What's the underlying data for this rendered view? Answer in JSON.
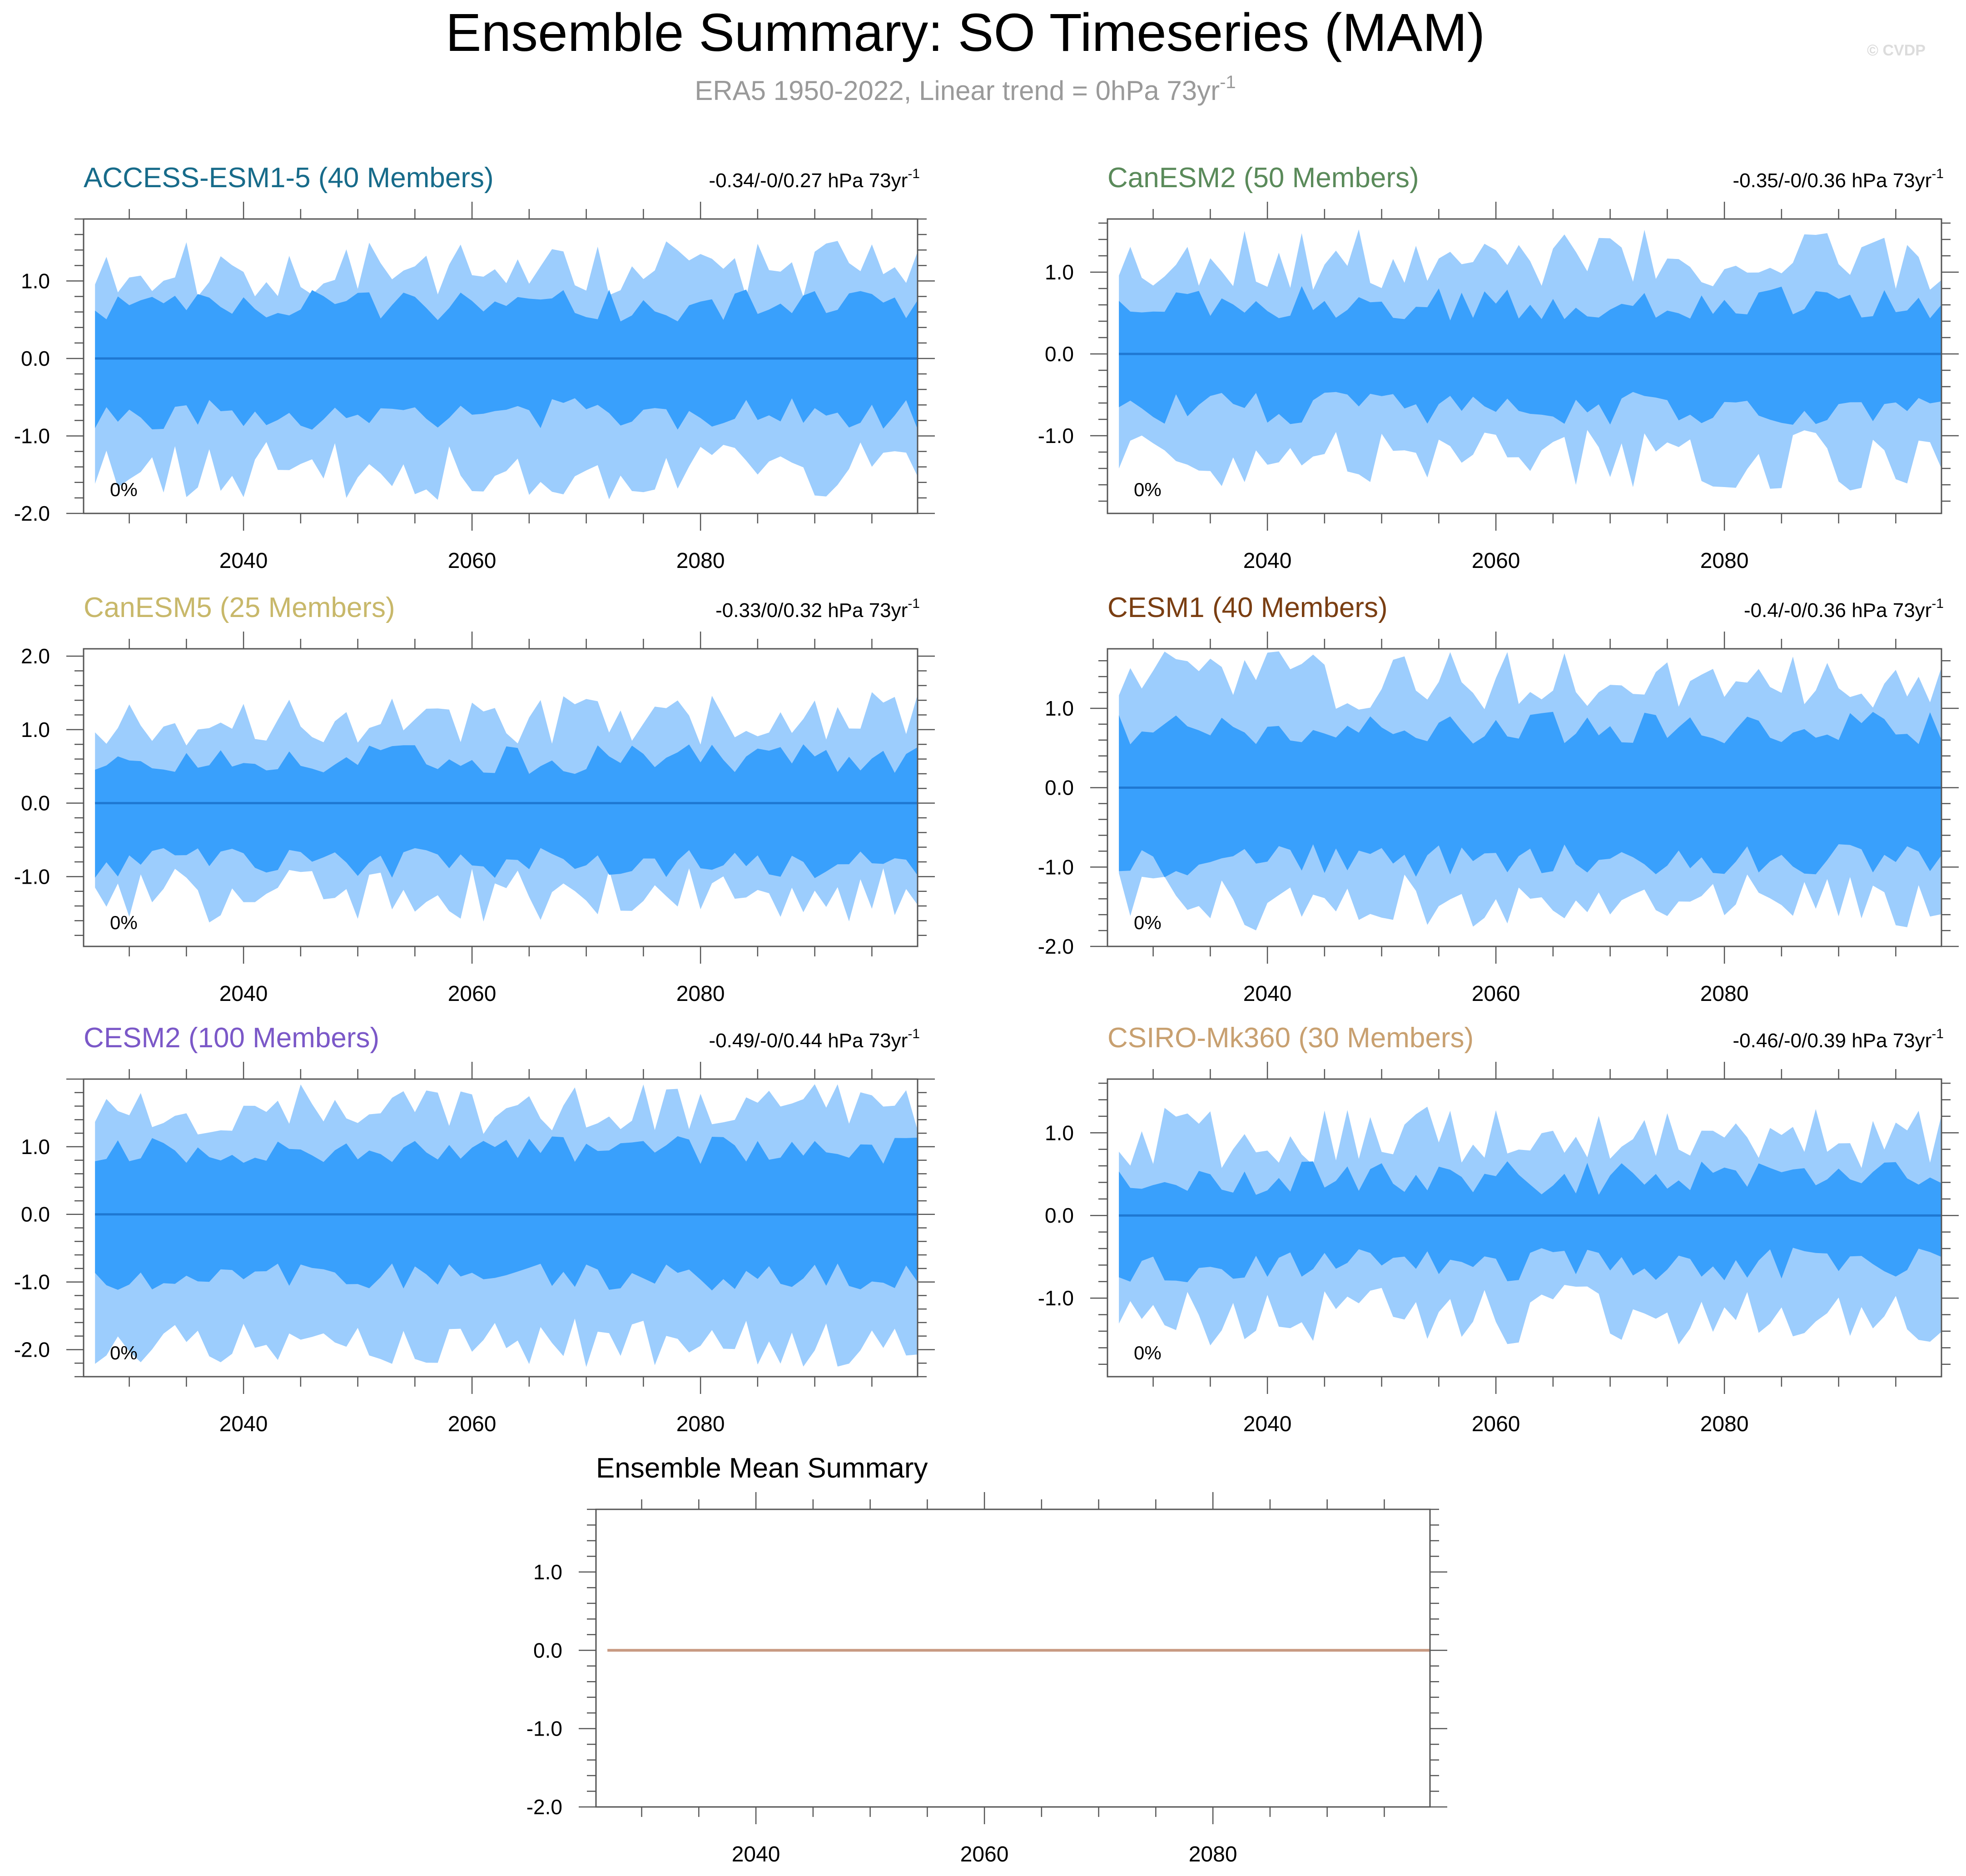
{
  "header": {
    "title": "Ensemble Summary: SO Timeseries (MAM)",
    "subtitle_text": "ERA5 1950-2022, Linear trend = 0hPa 73yr",
    "subtitle_sup": "-1",
    "watermark": "© CVDP"
  },
  "colors": {
    "outer_band": "#9ccdfd",
    "inner_band": "#39a0fc",
    "mean_line": "#1f78d2",
    "summary_line": "#c89a82",
    "axis": "#555555"
  },
  "chart_data": [
    {
      "type": "area",
      "title": "ACCESS-ESM1-5 (40 Members)",
      "title_color": "#176b8a",
      "trend_text": "-0.34/-0/0.27 hPa 73yr",
      "trend_sup": "-1",
      "percent_label": "0%",
      "xlim": [
        2026,
        2099
      ],
      "ylim": [
        -2.0,
        1.8
      ],
      "yticks": [
        -2.0,
        -1.0,
        0.0,
        1.0
      ],
      "ytick_labels": [
        "-2.0",
        "-1.0",
        "0.0",
        "1.0"
      ],
      "xticks": [
        2040,
        2060,
        2080
      ],
      "xtick_labels": [
        "2040",
        "2060",
        "2080"
      ],
      "grid": false,
      "seed": 11,
      "outer_upper_mean": 1.15,
      "outer_lower_mean": -1.45,
      "inner_upper_mean": 0.68,
      "inner_lower_mean": -0.72,
      "ensemble_mean": 0.0
    },
    {
      "type": "area",
      "title": "CanESM2 (50 Members)",
      "title_color": "#5a8a5a",
      "trend_text": "-0.35/-0/0.36 hPa 73yr",
      "trend_sup": "-1",
      "percent_label": "0%",
      "xlim": [
        2026,
        2099
      ],
      "ylim": [
        -1.95,
        1.65
      ],
      "yticks": [
        -1.0,
        0.0,
        1.0
      ],
      "ytick_labels": [
        "-1.0",
        "0.0",
        "1.0"
      ],
      "xticks": [
        2040,
        2060,
        2080
      ],
      "xtick_labels": [
        "2040",
        "2060",
        "2080"
      ],
      "grid": false,
      "seed": 23,
      "outer_upper_mean": 1.15,
      "outer_lower_mean": -1.3,
      "inner_upper_mean": 0.62,
      "inner_lower_mean": -0.66,
      "ensemble_mean": 0.0
    },
    {
      "type": "area",
      "title": "CanESM5 (25 Members)",
      "title_color": "#c8b86a",
      "trend_text": "-0.33/0/0.32 hPa 73yr",
      "trend_sup": "-1",
      "percent_label": "0%",
      "xlim": [
        2026,
        2099
      ],
      "ylim": [
        -1.95,
        2.1
      ],
      "yticks": [
        -1.0,
        0.0,
        1.0,
        2.0
      ],
      "ytick_labels": [
        "-1.0",
        "0.0",
        "1.0",
        "2.0"
      ],
      "xticks": [
        2040,
        2060,
        2080
      ],
      "xtick_labels": [
        "2040",
        "2060",
        "2080"
      ],
      "grid": false,
      "seed": 37,
      "outer_upper_mean": 1.15,
      "outer_lower_mean": -1.25,
      "inner_upper_mean": 0.6,
      "inner_lower_mean": -0.82,
      "ensemble_mean": 0.0
    },
    {
      "type": "area",
      "title": "CESM1 (40 Members)",
      "title_color": "#7a3e12",
      "trend_text": "-0.4/-0/0.36 hPa 73yr",
      "trend_sup": "-1",
      "percent_label": "0%",
      "xlim": [
        2026,
        2099
      ],
      "ylim": [
        -2.0,
        1.75
      ],
      "yticks": [
        -2.0,
        -1.0,
        0.0,
        1.0
      ],
      "ytick_labels": [
        "-2.0",
        "-1.0",
        "0.0",
        "1.0"
      ],
      "xticks": [
        2040,
        2060,
        2080
      ],
      "xtick_labels": [
        "2040",
        "2060",
        "2080"
      ],
      "grid": false,
      "seed": 41,
      "outer_upper_mean": 1.35,
      "outer_lower_mean": -1.45,
      "inner_upper_mean": 0.75,
      "inner_lower_mean": -0.92,
      "ensemble_mean": 0.0
    },
    {
      "type": "area",
      "title": "CESM2 (100 Members)",
      "title_color": "#7b58c8",
      "trend_text": "-0.49/-0/0.44 hPa 73yr",
      "trend_sup": "-1",
      "percent_label": "0%",
      "xlim": [
        2026,
        2099
      ],
      "ylim": [
        -2.4,
        2.0
      ],
      "yticks": [
        -2.0,
        -1.0,
        0.0,
        1.0
      ],
      "ytick_labels": [
        "-2.0",
        "-1.0",
        "0.0",
        "1.0"
      ],
      "xticks": [
        2040,
        2060,
        2080
      ],
      "xtick_labels": [
        "2040",
        "2060",
        "2080"
      ],
      "grid": false,
      "seed": 53,
      "outer_upper_mean": 1.55,
      "outer_lower_mean": -1.9,
      "inner_upper_mean": 0.95,
      "inner_lower_mean": -0.92,
      "ensemble_mean": 0.0
    },
    {
      "type": "area",
      "title": "CSIRO-Mk360 (30 Members)",
      "title_color": "#c8a070",
      "trend_text": "-0.46/-0/0.39 hPa 73yr",
      "trend_sup": "-1",
      "percent_label": "0%",
      "xlim": [
        2026,
        2099
      ],
      "ylim": [
        -1.95,
        1.65
      ],
      "yticks": [
        -1.0,
        0.0,
        1.0
      ],
      "ytick_labels": [
        "-1.0",
        "0.0",
        "1.0"
      ],
      "xticks": [
        2040,
        2060,
        2080
      ],
      "xtick_labels": [
        "2040",
        "2060",
        "2080"
      ],
      "grid": false,
      "seed": 67,
      "outer_upper_mean": 0.95,
      "outer_lower_mean": -1.2,
      "inner_upper_mean": 0.45,
      "inner_lower_mean": -0.6,
      "ensemble_mean": 0.0
    },
    {
      "type": "line",
      "title": "Ensemble Mean Summary",
      "title_color": "#000000",
      "xlim": [
        2026,
        2099
      ],
      "ylim": [
        -2.0,
        1.8
      ],
      "yticks": [
        -2.0,
        -1.0,
        0.0,
        1.0
      ],
      "ytick_labels": [
        "-2.0",
        "-1.0",
        "0.0",
        "1.0"
      ],
      "xticks": [
        2040,
        2060,
        2080
      ],
      "xtick_labels": [
        "2040",
        "2060",
        "2080"
      ],
      "grid": false,
      "series": [
        {
          "x": [
            2027,
            2099
          ],
          "y": [
            0.0,
            0.0
          ]
        }
      ]
    }
  ]
}
